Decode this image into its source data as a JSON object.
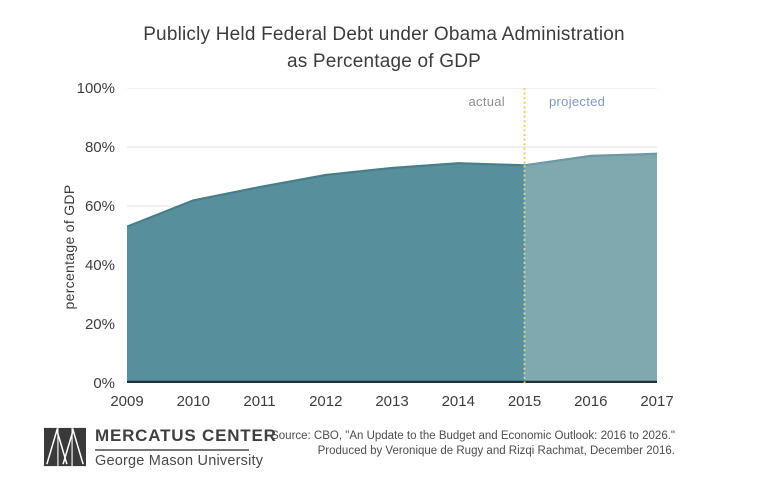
{
  "title": {
    "line1": "Publicly Held Federal Debt under Obama Administration",
    "line2": "as Percentage of GDP"
  },
  "chart_data": {
    "type": "area",
    "title": "Publicly Held Federal Debt under Obama Administration as Percentage of GDP",
    "x": [
      2009,
      2010,
      2011,
      2012,
      2013,
      2014,
      2015,
      2016,
      2017
    ],
    "series": [
      {
        "name": "publicly held federal debt (% of GDP)",
        "values": [
          53.0,
          61.9,
          66.4,
          70.5,
          72.9,
          74.5,
          73.8,
          77.0,
          77.7
        ]
      }
    ],
    "actual_through": 2015,
    "annotations": {
      "actual": "actual",
      "projected": "projected"
    },
    "xlabel": "",
    "ylabel": "percentage of GDP",
    "ylim": [
      0,
      100
    ],
    "ytick_labels": [
      "100%",
      "80%",
      "60%",
      "40%",
      "20%",
      "0%"
    ],
    "grid": "horizontal",
    "legend_position": "none",
    "colors": {
      "actual_fill": "#57909C",
      "actual_stroke": "#477E8A",
      "projected_fill": "#7FA8AF",
      "projected_stroke": "#6C99A2",
      "divider_top": "#F0C466",
      "divider_over_area": "#D9D79F",
      "grid": "#E7E7EB",
      "axis": "#1F3238",
      "actual_label": "#8C8C8C",
      "projected_label": "#7D98CB"
    }
  },
  "footer": {
    "brand": {
      "name": "MERCATUS CENTER",
      "subname": "George Mason University"
    },
    "source_line1": "Source: CBO, \"An Update to the Budget and Economic Outlook: 2016 to 2026.\"",
    "source_line2": "Produced by Veronique de Rugy and Rizqi Rachmat, December 2016."
  }
}
